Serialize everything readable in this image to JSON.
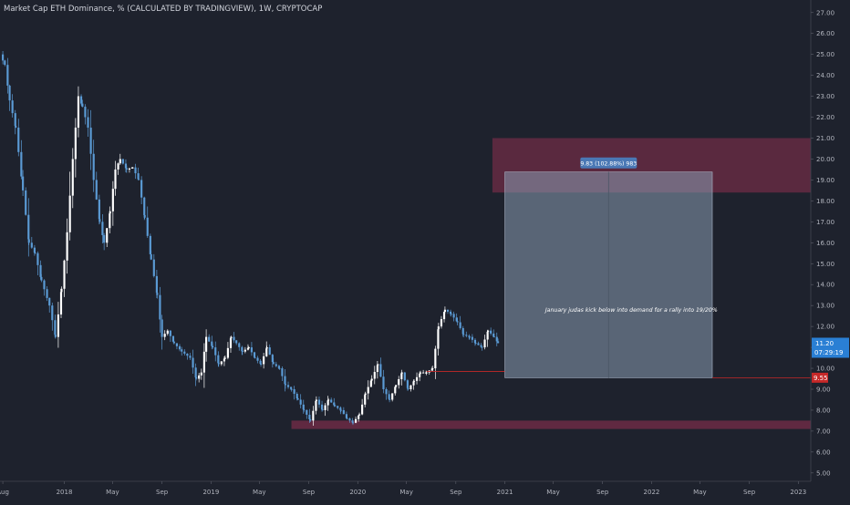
{
  "header": {
    "title": "Market Cap ETH Dominance, % (CALCULATED BY TRADINGVIEW), 1W, CRYPTOCAP"
  },
  "colors": {
    "background": "#1e222d",
    "axis_text": "#b2b5be",
    "candle_up": "#ffffff",
    "candle_down": "#5b9bd5",
    "supply_zone": "#8c2f4f",
    "projection_box": "#8b9cb3",
    "last_price_badge": "#2a7fd4",
    "stop_badge": "#c62828"
  },
  "chart_data": {
    "type": "candlestick",
    "title": "Market Cap ETH Dominance, % (CALCULATED BY TRADINGVIEW), 1W, CRYPTOCAP",
    "ylim": [
      4.6,
      27.6
    ],
    "xlim": [
      "2017-07-25",
      "2023-02-01"
    ],
    "yticks": [
      "5.00",
      "6.00",
      "7.00",
      "8.00",
      "9.00",
      "10.00",
      "11.00",
      "12.00",
      "13.00",
      "14.00",
      "15.00",
      "16.00",
      "17.00",
      "18.00",
      "19.00",
      "20.00",
      "21.00",
      "22.00",
      "23.00",
      "24.00",
      "25.00",
      "26.00",
      "27.00"
    ],
    "xticks": [
      {
        "label": "Aug",
        "date": "2017-08-01"
      },
      {
        "label": "2018",
        "date": "2018-01-01"
      },
      {
        "label": "May",
        "date": "2018-05-01"
      },
      {
        "label": "Sep",
        "date": "2018-09-01"
      },
      {
        "label": "2019",
        "date": "2019-01-01"
      },
      {
        "label": "May",
        "date": "2019-05-01"
      },
      {
        "label": "Sep",
        "date": "2019-09-01"
      },
      {
        "label": "2020",
        "date": "2020-01-01"
      },
      {
        "label": "May",
        "date": "2020-05-01"
      },
      {
        "label": "Sep",
        "date": "2020-09-01"
      },
      {
        "label": "2021",
        "date": "2021-01-01"
      },
      {
        "label": "May",
        "date": "2021-05-01"
      },
      {
        "label": "Sep",
        "date": "2021-09-01"
      },
      {
        "label": "2022",
        "date": "2022-01-01"
      },
      {
        "label": "May",
        "date": "2022-05-01"
      },
      {
        "label": "Sep",
        "date": "2022-09-01"
      },
      {
        "label": "2023",
        "date": "2023-01-01"
      }
    ],
    "path": [
      [
        "2017-07-25",
        25.0
      ],
      [
        "2017-08-06",
        24.5
      ],
      [
        "2017-08-18",
        22.8
      ],
      [
        "2017-09-02",
        21.5
      ],
      [
        "2017-09-20",
        18.5
      ],
      [
        "2017-10-05",
        16.0
      ],
      [
        "2017-10-20",
        15.5
      ],
      [
        "2017-11-05",
        14.2
      ],
      [
        "2017-11-25",
        13.0
      ],
      [
        "2017-12-10",
        11.5
      ],
      [
        "2017-12-25",
        13.8
      ],
      [
        "2018-01-08",
        16.5
      ],
      [
        "2018-01-22",
        20.0
      ],
      [
        "2018-02-05",
        23.0
      ],
      [
        "2018-02-15",
        22.5
      ],
      [
        "2018-03-01",
        21.5
      ],
      [
        "2018-03-15",
        19.0
      ],
      [
        "2018-03-30",
        17.0
      ],
      [
        "2018-04-10",
        16.0
      ],
      [
        "2018-04-25",
        17.5
      ],
      [
        "2018-05-08",
        19.5
      ],
      [
        "2018-05-20",
        20.0
      ],
      [
        "2018-06-05",
        19.5
      ],
      [
        "2018-06-20",
        19.6
      ],
      [
        "2018-07-05",
        19.0
      ],
      [
        "2018-07-20",
        17.2
      ],
      [
        "2018-08-05",
        15.2
      ],
      [
        "2018-08-20",
        13.5
      ],
      [
        "2018-09-01",
        11.5
      ],
      [
        "2018-09-15",
        11.8
      ],
      [
        "2018-10-01",
        11.2
      ],
      [
        "2018-10-20",
        10.8
      ],
      [
        "2018-11-10",
        10.5
      ],
      [
        "2018-11-25",
        9.5
      ],
      [
        "2018-12-08",
        9.8
      ],
      [
        "2018-12-20",
        11.5
      ],
      [
        "2019-01-05",
        11.0
      ],
      [
        "2019-01-20",
        10.2
      ],
      [
        "2019-02-05",
        10.5
      ],
      [
        "2019-02-20",
        11.5
      ],
      [
        "2019-03-05",
        11.2
      ],
      [
        "2019-03-20",
        10.8
      ],
      [
        "2019-04-05",
        11.0
      ],
      [
        "2019-04-20",
        10.5
      ],
      [
        "2019-05-05",
        10.2
      ],
      [
        "2019-05-20",
        11.0
      ],
      [
        "2019-06-05",
        10.2
      ],
      [
        "2019-06-20",
        10.0
      ],
      [
        "2019-07-05",
        9.2
      ],
      [
        "2019-07-20",
        9.0
      ],
      [
        "2019-08-05",
        8.5
      ],
      [
        "2019-08-20",
        8.0
      ],
      [
        "2019-09-05",
        7.5
      ],
      [
        "2019-09-20",
        8.5
      ],
      [
        "2019-10-05",
        8.0
      ],
      [
        "2019-10-20",
        8.5
      ],
      [
        "2019-11-05",
        8.2
      ],
      [
        "2019-11-20",
        8.0
      ],
      [
        "2019-12-05",
        7.6
      ],
      [
        "2019-12-20",
        7.4
      ],
      [
        "2020-01-05",
        7.8
      ],
      [
        "2020-01-20",
        8.8
      ],
      [
        "2020-02-05",
        9.5
      ],
      [
        "2020-02-20",
        10.2
      ],
      [
        "2020-03-05",
        9.0
      ],
      [
        "2020-03-20",
        8.5
      ],
      [
        "2020-04-05",
        9.2
      ],
      [
        "2020-04-20",
        9.8
      ],
      [
        "2020-05-05",
        9.0
      ],
      [
        "2020-05-20",
        9.4
      ],
      [
        "2020-06-05",
        9.8
      ],
      [
        "2020-06-20",
        9.8
      ],
      [
        "2020-07-05",
        10.0
      ],
      [
        "2020-07-20",
        12.0
      ],
      [
        "2020-08-05",
        12.8
      ],
      [
        "2020-08-20",
        12.6
      ],
      [
        "2020-09-05",
        12.2
      ],
      [
        "2020-09-20",
        11.6
      ],
      [
        "2020-10-05",
        11.5
      ],
      [
        "2020-10-20",
        11.2
      ],
      [
        "2020-11-05",
        11.0
      ],
      [
        "2020-11-20",
        11.8
      ],
      [
        "2020-12-05",
        11.5
      ],
      [
        "2020-12-15",
        11.2
      ]
    ],
    "annotations": {
      "supply_zone": {
        "from": "2020-12-01",
        "to": "2023-02-01",
        "low": 18.4,
        "high": 21.0
      },
      "demand_zone": {
        "from": "2019-07-20",
        "to": "2023-02-01",
        "low": 7.1,
        "high": 7.5
      },
      "projection_box": {
        "from": "2021-01-01",
        "to": "2022-06-01",
        "low": 9.55,
        "high": 19.38
      },
      "projection_label": "9.83 (102.88%) 983",
      "note": "January judas kick below into demand for a rally into 19/20%",
      "last_price": {
        "value": 11.2,
        "label": "11.20",
        "countdown": "07:29:19"
      },
      "stop_level": {
        "value": 9.55,
        "label": "9.55"
      },
      "red_line_level": 9.85
    }
  }
}
